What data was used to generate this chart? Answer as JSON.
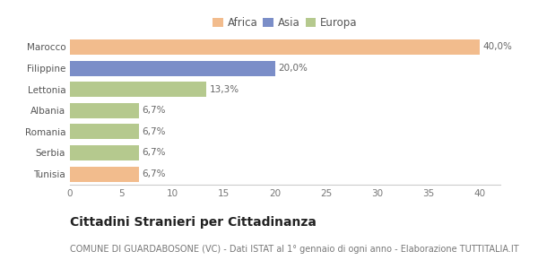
{
  "categories": [
    "Marocco",
    "Filippine",
    "Lettonia",
    "Albania",
    "Romania",
    "Serbia",
    "Tunisia"
  ],
  "values": [
    40.0,
    20.0,
    13.3,
    6.7,
    6.7,
    6.7,
    6.7
  ],
  "labels": [
    "40,0%",
    "20,0%",
    "13,3%",
    "6,7%",
    "6,7%",
    "6,7%",
    "6,7%"
  ],
  "colors": [
    "#f2bc8d",
    "#7b8ec8",
    "#b5c98e",
    "#b5c98e",
    "#b5c98e",
    "#b5c98e",
    "#f2bc8d"
  ],
  "legend": [
    {
      "label": "Africa",
      "color": "#f2bc8d"
    },
    {
      "label": "Asia",
      "color": "#7b8ec8"
    },
    {
      "label": "Europa",
      "color": "#b5c98e"
    }
  ],
  "xlim": [
    0,
    42
  ],
  "xticks": [
    0,
    5,
    10,
    15,
    20,
    25,
    30,
    35,
    40
  ],
  "title": "Cittadini Stranieri per Cittadinanza",
  "subtitle": "COMUNE DI GUARDABOSONE (VC) - Dati ISTAT al 1° gennaio di ogni anno - Elaborazione TUTTITALIA.IT",
  "background_color": "#ffffff",
  "bar_height": 0.72,
  "title_fontsize": 10,
  "subtitle_fontsize": 7,
  "tick_fontsize": 7.5,
  "label_fontsize": 7.5,
  "legend_fontsize": 8.5
}
